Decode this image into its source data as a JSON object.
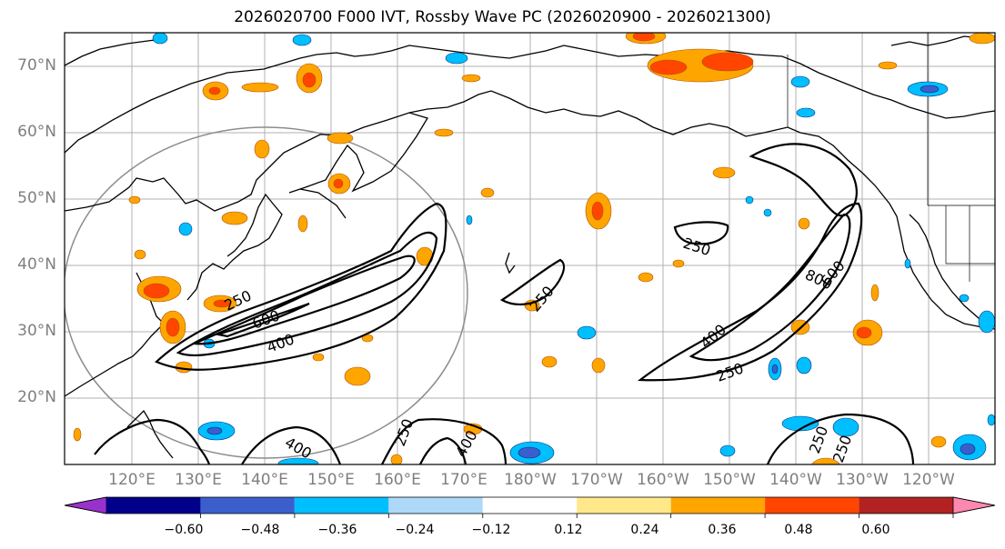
{
  "title": "2026020700 F000 IVT, Rossby Wave PC (2026020900 - 2026021300)",
  "lat_labels": [
    "70°N",
    "60°N",
    "50°N",
    "40°N",
    "30°N",
    "20°N"
  ],
  "lon_labels": [
    "120°E",
    "130°E",
    "140°E",
    "150°E",
    "160°E",
    "170°E",
    "180°W",
    "170°W",
    "160°W",
    "150°W",
    "140°W",
    "130°W",
    "120°W"
  ],
  "contour_labels": [
    "250",
    "600",
    "400",
    "250",
    "400",
    "250",
    "400",
    "250",
    "800",
    "600",
    "400",
    "250",
    "250",
    "250"
  ],
  "colorbar": {
    "ticks": [
      "−0.60",
      "−0.48",
      "−0.36",
      "−0.24",
      "−0.12",
      "0.12",
      "0.24",
      "0.36",
      "0.48",
      "0.60"
    ],
    "colors": [
      "#9932cc",
      "#00008b",
      "#3a5fcd",
      "#00bfff",
      "#add8f8",
      "#ffffff",
      "#ffe88a",
      "#ffa500",
      "#ff4500",
      "#b22222",
      "#ff88b0"
    ]
  }
}
